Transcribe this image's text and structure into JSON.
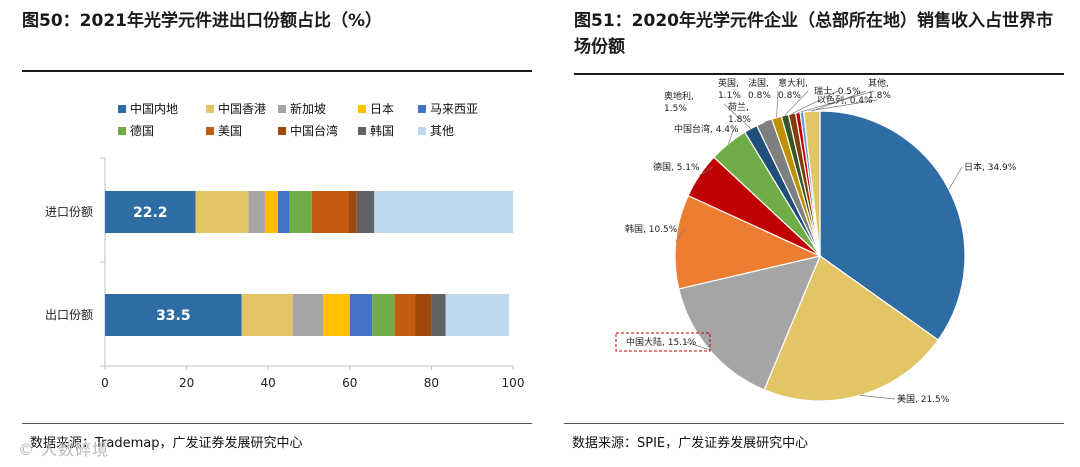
{
  "left": {
    "title": "图50：2021年光学元件进出口份额占比（%）",
    "source": "数据来源：Trademap，广发证券发展研究中心",
    "watermark": "© 人数碎境"
  },
  "right": {
    "title": "图51：2020年光学元件企业（总部所在地）销售收入占世界市场份额",
    "source": "数据来源：SPIE，广发证券发展研究中心"
  },
  "chart_data": [
    {
      "type": "bar",
      "orientation": "horizontal",
      "stacked": true,
      "title": "2021年光学元件进出口份额占比（%）",
      "categories": [
        "进口份额",
        "出口份额"
      ],
      "series": [
        {
          "name": "中国内地",
          "color": "#2E6CA4",
          "values": [
            22.2,
            33.5
          ]
        },
        {
          "name": "中国香港",
          "color": "#E3C565",
          "values": [
            13.0,
            12.5
          ]
        },
        {
          "name": "新加坡",
          "color": "#A5A5A5",
          "values": [
            4.0,
            7.5
          ]
        },
        {
          "name": "日本",
          "color": "#FFC000",
          "values": [
            3.2,
            6.5
          ]
        },
        {
          "name": "马来西亚",
          "color": "#4472C4",
          "values": [
            2.8,
            5.5
          ]
        },
        {
          "name": "德国",
          "color": "#70AD47",
          "values": [
            5.5,
            5.5
          ]
        },
        {
          "name": "美国",
          "color": "#C55A11",
          "values": [
            9.0,
            5.0
          ]
        },
        {
          "name": "中国台湾",
          "color": "#9E480E",
          "values": [
            2.0,
            4.0
          ]
        },
        {
          "name": "韩国",
          "color": "#636363",
          "values": [
            4.3,
            3.5
          ]
        },
        {
          "name": "其他",
          "color": "#BDD7EE",
          "values": [
            34.0,
            15.5
          ]
        }
      ],
      "data_labels": [
        "22.2",
        "33.5"
      ],
      "xlim": [
        0,
        100
      ],
      "xticks": [
        "0",
        "20",
        "40",
        "60",
        "80",
        "100"
      ],
      "legend_position": "top"
    },
    {
      "type": "pie",
      "title": "2020年光学元件企业（总部所在地）销售收入占世界市场份额",
      "slices": [
        {
          "name": "日本",
          "value": 34.9,
          "label": "日本, 34.9%",
          "color": "#2E6CA4"
        },
        {
          "name": "美国",
          "value": 21.5,
          "label": "美国, 21.5%",
          "color": "#E3C565"
        },
        {
          "name": "中国大陆",
          "value": 15.1,
          "label": "中国大陆, 15.1%",
          "color": "#A5A5A5"
        },
        {
          "name": "韩国",
          "value": 10.5,
          "label": "韩国, 10.5%",
          "color": "#ED7D31"
        },
        {
          "name": "德国",
          "value": 5.1,
          "label": "德国, 5.1%",
          "color": "#C00000"
        },
        {
          "name": "中国台湾",
          "value": 4.4,
          "label": "中国台湾, 4.4%",
          "color": "#70AD47"
        },
        {
          "name": "奥地利",
          "value": 1.5,
          "label": "奥地利, 1.5%",
          "color": "#1F4E79"
        },
        {
          "name": "荷兰",
          "value": 1.8,
          "label": "荷兰, 1.8%",
          "color": "#7F7F7F"
        },
        {
          "name": "英国",
          "value": 1.1,
          "label": "英国, 1.1%",
          "color": "#BF9000"
        },
        {
          "name": "法国",
          "value": 0.8,
          "label": "法国, 0.8%",
          "color": "#375623"
        },
        {
          "name": "意大利",
          "value": 0.8,
          "label": "意大利, 0.8%",
          "color": "#843C0C"
        },
        {
          "name": "瑞士",
          "value": 0.5,
          "label": "瑞士, 0.5%",
          "color": "#C00000"
        },
        {
          "name": "以色列",
          "value": 0.4,
          "label": "以色列, 0.4%",
          "color": "#5B9BD5"
        },
        {
          "name": "其他",
          "value": 1.8,
          "label": "其他, 1.8%",
          "color": "#E3C565"
        }
      ]
    }
  ]
}
